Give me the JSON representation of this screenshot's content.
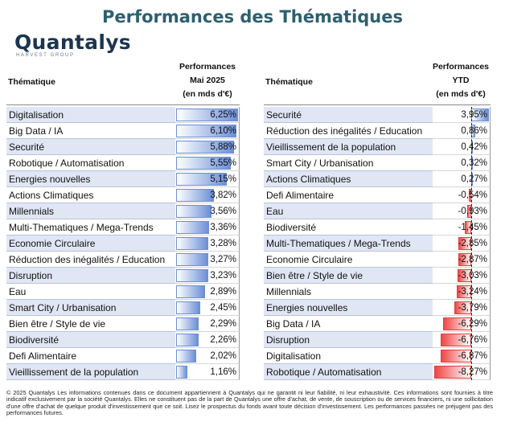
{
  "title": "Performances des Thématiques",
  "logo": {
    "word": "Quantalys",
    "sub": "HARVEST GROUP"
  },
  "left_header": {
    "theme": "Thématique",
    "line1": "Performances",
    "line2": "Mai 2025",
    "line3": "(en mds d'€)"
  },
  "right_header": {
    "theme": "Thématique",
    "line1": "Performances",
    "line2": "YTD",
    "line3": "(en mds d'€)"
  },
  "colors": {
    "title": "#2d5f6f",
    "positive_bar": "#6c8fd6",
    "negative_bar": "#f04545",
    "row_shade": "#e1e6f4"
  },
  "chart_data": [
    {
      "type": "table",
      "title": "Mai 2025",
      "categories": [
        "Digitalisation",
        "Big Data / IA",
        "Securité",
        "Robotique / Automatisation",
        "Energies nouvelles",
        "Actions Climatiques",
        "Millennials",
        "Multi-Thematiques / Mega-Trends",
        "Economie Circulaire",
        "Réduction des inégalités / Education",
        "Disruption",
        "Eau",
        "Smart City / Urbanisation",
        "Bien être / Style de vie",
        "Biodiversité",
        "Defi Alimentaire",
        "Vieillissement de la population"
      ],
      "values": [
        6.25,
        6.1,
        5.88,
        5.55,
        5.15,
        3.82,
        3.56,
        3.36,
        3.28,
        3.27,
        3.23,
        2.89,
        2.45,
        2.29,
        2.26,
        2.02,
        1.16
      ],
      "labels": [
        "6,25%",
        "6,10%",
        "5,88%",
        "5,55%",
        "5,15%",
        "3,82%",
        "3,56%",
        "3,36%",
        "3,28%",
        "3,27%",
        "3,23%",
        "2,89%",
        "2,45%",
        "2,29%",
        "2,26%",
        "2,02%",
        "1,16%"
      ]
    },
    {
      "type": "table",
      "title": "YTD",
      "categories": [
        "Securité",
        "Réduction des inégalités / Education",
        "Vieillissement de la population",
        "Smart City / Urbanisation",
        "Actions Climatiques",
        "Defi Alimentaire",
        "Eau",
        "Biodiversité",
        "Multi-Thematiques / Mega-Trends",
        "Economie Circulaire",
        "Bien être / Style de vie",
        "Millennials",
        "Energies nouvelles",
        "Big Data / IA",
        "Disruption",
        "Digitalisation",
        "Robotique / Automatisation"
      ],
      "values": [
        3.95,
        0.86,
        0.42,
        0.32,
        0.27,
        -0.54,
        -0.93,
        -1.45,
        -2.85,
        -2.87,
        -3.03,
        -3.24,
        -3.79,
        -6.29,
        -6.76,
        -6.87,
        -8.27
      ],
      "labels": [
        "3,95%",
        "0,86%",
        "0,42%",
        "0,32%",
        "0,27%",
        "-0,54%",
        "-0,93%",
        "-1,45%",
        "-2,85%",
        "-2,87%",
        "-3,03%",
        "-3,24%",
        "-3,79%",
        "-6,29%",
        "-6,76%",
        "-6,87%",
        "-8,27%"
      ]
    }
  ],
  "footer": "© 2025 Quantalys Les informations contenues dans ce document appartiennent à Quantalys qui ne garantit ni leur fiabilité, ni leur exhaustivité. Ces informations sont fournies à titre indicatif exclusivement par la société Quantalys. Elles ne constituent pas de la part de Quantalys une offre d'achat, de vente, de souscription ou de services financiers, ni une sollicitation d'une offre d'achat de quelque produit d'investissement que ce soit. Lisez le prospectus du fonds avant toute décision d'investissement. Les performances passées ne préjugent pas des performances futures."
}
